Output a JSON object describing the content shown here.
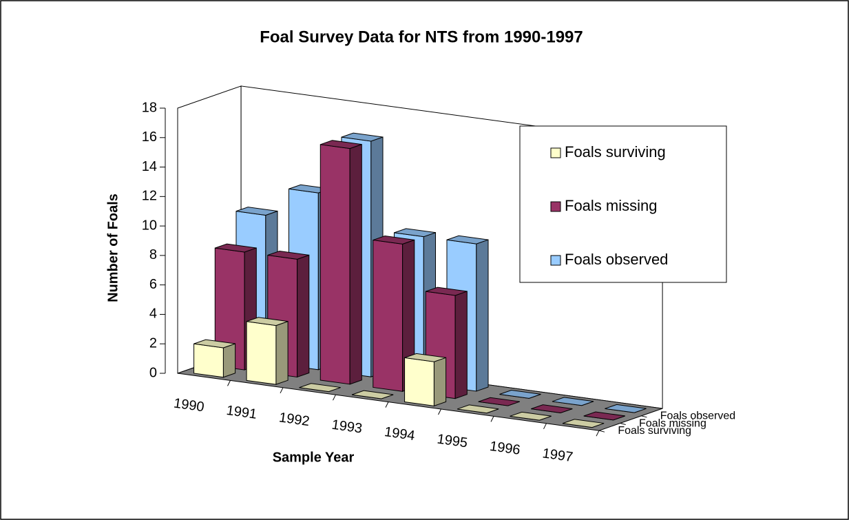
{
  "chart_data": {
    "type": "bar3d",
    "title": "Foal Survey Data for NTS from 1990-1997",
    "ylabel": "Number of Foals",
    "xlabel": "Sample Year",
    "categories": [
      "1990",
      "1991",
      "1992",
      "1993",
      "1994",
      "1995",
      "1996",
      "1997"
    ],
    "series": [
      {
        "name": "Foals surviving",
        "color": "#ffffcc",
        "values": [
          2,
          4,
          0,
          0,
          3,
          0,
          0,
          0
        ]
      },
      {
        "name": "Foals missing",
        "color": "#993366",
        "values": [
          8,
          8,
          16,
          10,
          7,
          0,
          0,
          0
        ]
      },
      {
        "name": "Foals observed",
        "color": "#99ccff",
        "values": [
          10,
          12,
          16,
          10,
          10,
          0,
          0,
          0
        ]
      }
    ],
    "ylim": [
      0,
      18
    ],
    "yticks": [
      0,
      2,
      4,
      6,
      8,
      10,
      12,
      14,
      16,
      18
    ]
  }
}
